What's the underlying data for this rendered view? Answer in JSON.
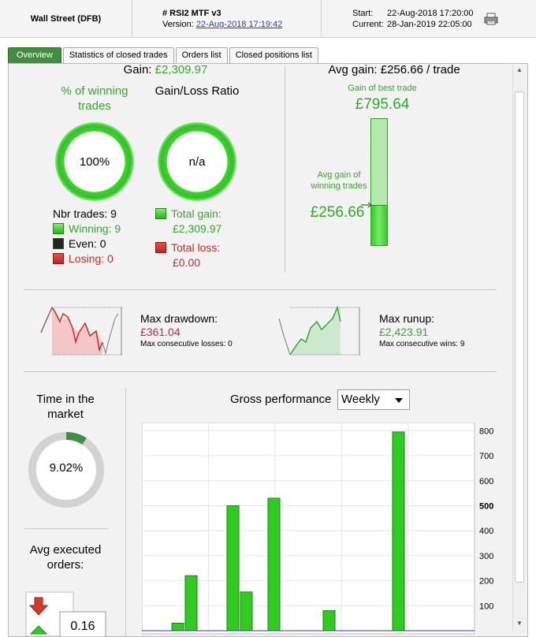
{
  "header": {
    "broker": "Wall Street (DFB)",
    "strategy": "# RSI2 MTF v3",
    "version_label": "Version:",
    "version_date": "22-Aug-2018 17:19:42",
    "start_label": "Start:",
    "start_value": "22-Aug-2018 17:20:00",
    "current_label": "Current:",
    "current_value": "28-Jan-2019 22:05:00",
    "print_icon": "printer-icon"
  },
  "tabs": [
    "Overview",
    "Statistics of closed trades",
    "Orders list",
    "Closed positions list"
  ],
  "gain": {
    "label": "Gain:",
    "value": "£2,309.97"
  },
  "winning": {
    "title": "% of winning trades",
    "value": "100%"
  },
  "gainloss": {
    "title": "Gain/Loss Ratio",
    "value": "n/a"
  },
  "trades": {
    "nbr": "Nbr trades: 9",
    "winning": "Winning: 9",
    "even": "Even: 0",
    "losing": "Losing: 0",
    "total_gain_label": "Total gain:",
    "total_gain": "£2,309.97",
    "total_loss_label": "Total loss:",
    "total_loss": "£0.00"
  },
  "avg_gain": {
    "title": "Avg gain: £256.66 / trade",
    "best_label": "Gain of best trade",
    "best_value": "£795.64",
    "avg_label": "Avg gain of winning trades",
    "avg_value": "£256.66",
    "fill_fraction": 0.32
  },
  "drawdown": {
    "label": "Max drawdown:",
    "value": "£361.04",
    "sub": "Max consecutive losses: 0"
  },
  "runup": {
    "label": "Max runup:",
    "value": "£2,423.91",
    "sub": "Max consecutive wins: 9"
  },
  "time_market": {
    "title": "Time in the market",
    "value": "9.02%",
    "fraction": 0.0902
  },
  "avg_orders": {
    "title": "Avg executed orders:",
    "value": "0.16"
  },
  "gross": {
    "title": "Gross performance",
    "period": "Weekly"
  },
  "chart_data": {
    "type": "bar",
    "values": [
      30,
      220,
      500,
      155,
      530,
      80,
      795
    ],
    "y_ticks": [
      100,
      200,
      300,
      400,
      500,
      600,
      700,
      800
    ],
    "ylim": [
      0,
      820
    ],
    "grid": true,
    "color": "#2ecc1f"
  }
}
